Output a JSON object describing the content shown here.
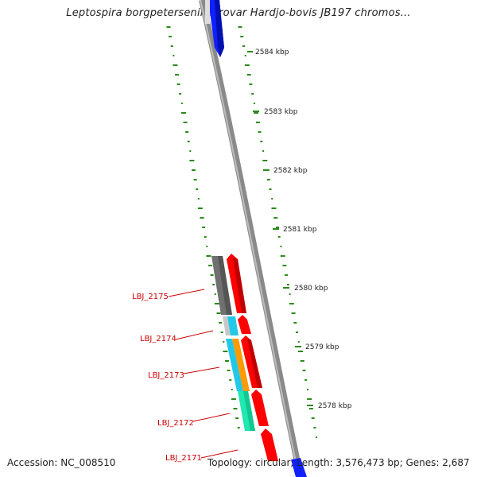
{
  "title": "Leptospira borgpetersenii serovar Hardjo-bovis JB197 chromos...",
  "footer": {
    "accession": "Accession: NC_008510",
    "stats": "Topology: circular; Length: 3,576,473 bp; Genes: 2,687"
  },
  "colors": {
    "backbone": "#8a8a8a",
    "forward_gene": "#ff0000",
    "reverse_gene_grey": "#707070",
    "cyan": "#22c8e8",
    "orange": "#ff9a00",
    "teal": "#20d8b0",
    "blue": "#1020ff",
    "gc_marks": "#2a8a1a",
    "label": "#cc0000"
  },
  "scale_ticks": [
    {
      "label": "2584 kbp"
    },
    {
      "label": "2583 kbp"
    },
    {
      "label": "2582 kbp"
    },
    {
      "label": "2581 kbp"
    },
    {
      "label": "2580 kbp"
    },
    {
      "label": "2579 kbp"
    },
    {
      "label": "2578 kbp"
    }
  ],
  "gene_labels": [
    {
      "label": "LBJ_2175"
    },
    {
      "label": "LBJ_2174"
    },
    {
      "label": "LBJ_2173"
    },
    {
      "label": "LBJ_2172"
    },
    {
      "label": "LBJ_2171"
    }
  ]
}
